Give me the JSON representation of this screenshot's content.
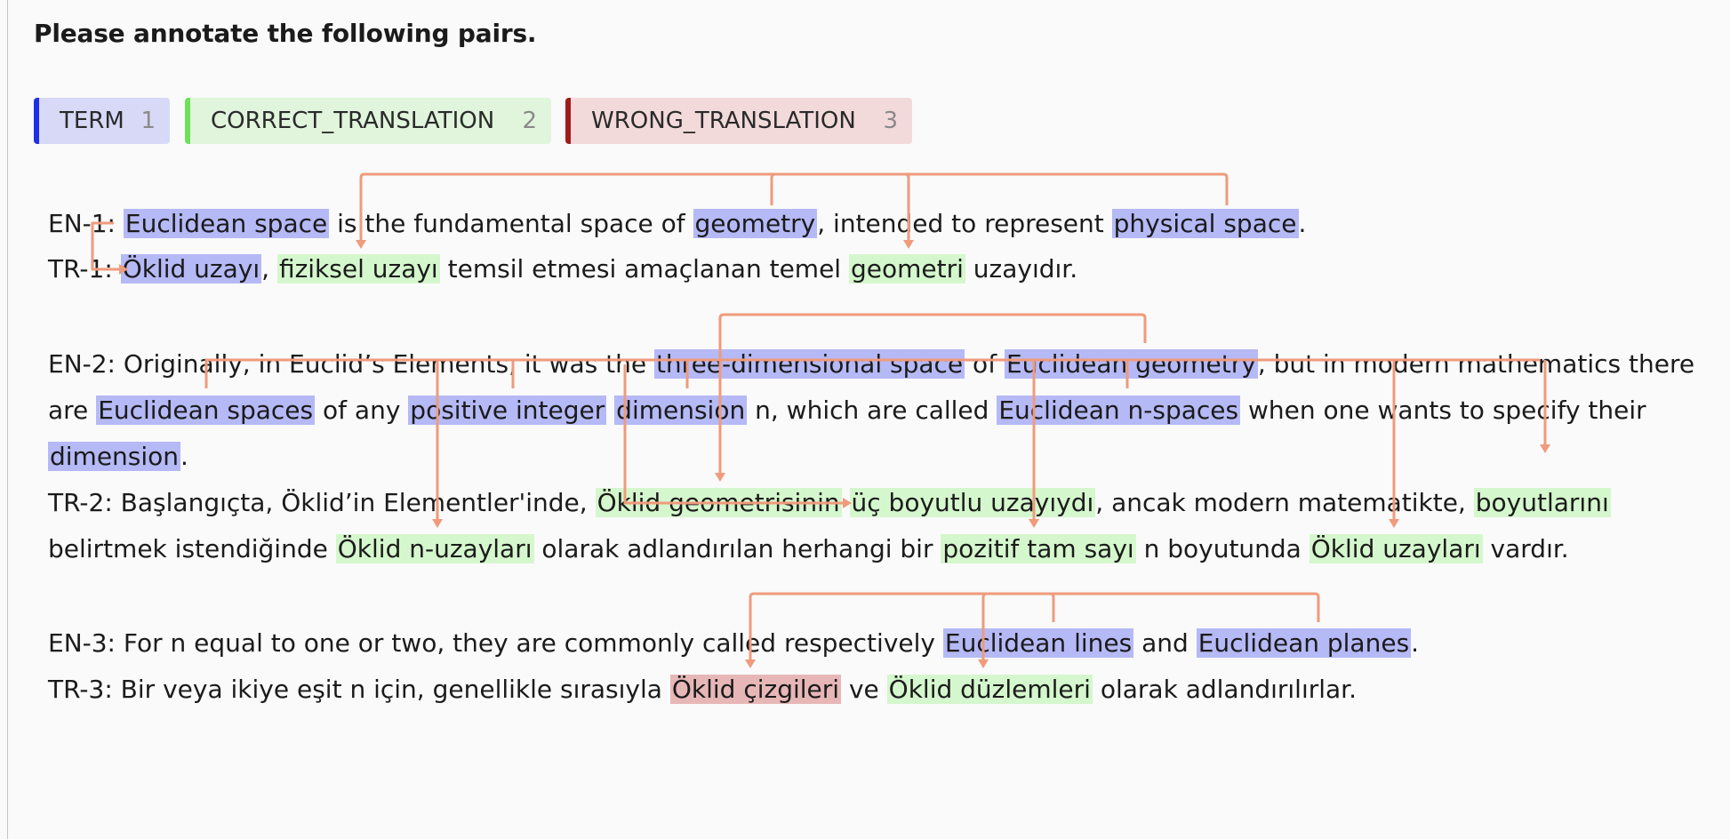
{
  "heading": "Please annotate the following pairs.",
  "labels": [
    {
      "name": "TERM",
      "hotkey": "1",
      "color": "#1e2fe6"
    },
    {
      "name": "CORRECT_TRANSLATION",
      "hotkey": "2",
      "color": "#6ee05a"
    },
    {
      "name": "WRONG_TRANSLATION",
      "hotkey": "3",
      "color": "#a11b1b"
    }
  ],
  "pairs": {
    "en1": {
      "prefix": "EN-1: ",
      "t1": "Euclidean space",
      "s1": " is the fundamental space of ",
      "t2": "geometry",
      "s2": ", intended to represent ",
      "t3": "physical space",
      "s3": "."
    },
    "tr1": {
      "prefix": "TR-1: ",
      "t1": "Öklid uzayı",
      "s1": ", ",
      "c1": "fiziksel uzayı",
      "s2": " temsil etmesi amaçlanan temel ",
      "c2": "geometri",
      "s3": " uzayıdır."
    },
    "en2": {
      "line1": {
        "prefix": "EN-2: Originally, in Euclid’s Elements, it was the ",
        "t1": "three-dimensional space",
        "s1": " of ",
        "t2": "Euclidean geometry",
        "s2": ", but in modern mathematics there"
      },
      "line2": {
        "s0": "are ",
        "t1": "Euclidean spaces",
        "s1": " of any ",
        "t2": "positive integer",
        "s2": " ",
        "t3": "dimension",
        "s3": " n, which are called ",
        "t4": "Euclidean n-spaces",
        "s4": " when one wants to specify their"
      },
      "line3": {
        "t1": "dimension",
        "s1": "."
      }
    },
    "tr2": {
      "line1": {
        "prefix": "TR-2: Başlangıçta, Öklid’in Elementler'inde, ",
        "c1": "Öklid geometrisinin",
        "s1": " ",
        "c2": "üç boyutlu uzayıydı",
        "s2": ", ancak modern matematikte, ",
        "c3": "boyutlarını"
      },
      "line2": {
        "s0": "belirtmek istendiğinde ",
        "c1": "Öklid n-uzayları",
        "s1": " olarak adlandırılan herhangi bir ",
        "c2": "pozitif tam sayı",
        "s2": " n boyutunda ",
        "c3": "Öklid uzayları",
        "s3": " vardır."
      }
    },
    "en3": {
      "prefix": "EN-3: For n equal to one or two, they are commonly called respectively ",
      "t1": "Euclidean lines",
      "s1": " and ",
      "t2": "Euclidean planes",
      "s2": "."
    },
    "tr3": {
      "prefix": "TR-3: Bir veya ikiye eşit n için, genellikle sırasıyla ",
      "w1": "Öklid çizgileri",
      "s1": " ve ",
      "c1": "Öklid düzlemleri",
      "s2": " olarak adlandırılırlar."
    }
  },
  "relation_color": "#ef9b7c"
}
